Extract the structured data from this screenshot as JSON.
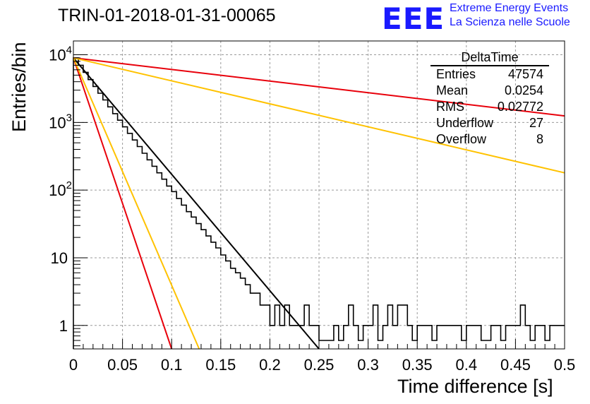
{
  "page": {
    "title": "TRIN-01-2018-01-31-00065",
    "logo": {
      "mark": "EEE",
      "line1": "Extreme Energy Events",
      "line2": "La Scienza nelle Scuole",
      "color": "#1a1aff"
    }
  },
  "stats": {
    "name": "DeltaTime",
    "rows": [
      {
        "label": "Entries",
        "value": "47574"
      },
      {
        "label": "Mean",
        "value": "0.0254"
      },
      {
        "label": "RMS",
        "value": "0.02772"
      },
      {
        "label": "Underflow",
        "value": "27"
      },
      {
        "label": "Overflow",
        "value": "8"
      }
    ]
  },
  "chart_data": {
    "type": "line",
    "xlabel": "Time difference [s]",
    "ylabel": "Entries/bin",
    "xlim": [
      0,
      0.5
    ],
    "ylim": [
      0.45,
      16000
    ],
    "yscale": "log",
    "grid": true,
    "x_ticks": [
      "0",
      "0.05",
      "0.1",
      "0.15",
      "0.2",
      "0.25",
      "0.3",
      "0.35",
      "0.4",
      "0.45",
      "0.5"
    ],
    "y_ticks": [
      "1",
      "10",
      "10^2",
      "10^3",
      "10^4"
    ],
    "histogram": {
      "bin_width": 0.005,
      "color": "#000000",
      "values": [
        9000,
        7000,
        5500,
        4300,
        3400,
        2700,
        2150,
        1700,
        1350,
        1080,
        860,
        690,
        550,
        440,
        350,
        280,
        225,
        180,
        145,
        115,
        95,
        75,
        60,
        48,
        40,
        32,
        26,
        21,
        17,
        14,
        11,
        9,
        7,
        6,
        5,
        4,
        3,
        3,
        2,
        2,
        1,
        2,
        1,
        2,
        1,
        1,
        1,
        2,
        1,
        1,
        0.6,
        0.6,
        0.6,
        1,
        0.6,
        1,
        2,
        1,
        0.6,
        1,
        1,
        2,
        0.6,
        1,
        2,
        1,
        2,
        2,
        1,
        0.6,
        1,
        1,
        1,
        0.6,
        1,
        1,
        1,
        1,
        1,
        0.6,
        1,
        1,
        1,
        0.6,
        0.6,
        1,
        1,
        0.6,
        1,
        1,
        1,
        2,
        1,
        0.6,
        1,
        1,
        0.6,
        1,
        1,
        1
      ]
    },
    "series": [
      {
        "color": "#000000",
        "x": [
          0,
          0.25
        ],
        "y": [
          9000,
          0.45
        ]
      },
      {
        "color": "#e8000b",
        "x": [
          0,
          0.1
        ],
        "y": [
          9000,
          0.45
        ]
      },
      {
        "color": "#ffc200",
        "x": [
          0,
          0.128
        ],
        "y": [
          9000,
          0.45
        ]
      },
      {
        "color": "#e8000b",
        "x": [
          0,
          0.5
        ],
        "y": [
          9000,
          1250
        ]
      },
      {
        "color": "#ffc200",
        "x": [
          0,
          0.5
        ],
        "y": [
          9000,
          180
        ]
      }
    ]
  }
}
